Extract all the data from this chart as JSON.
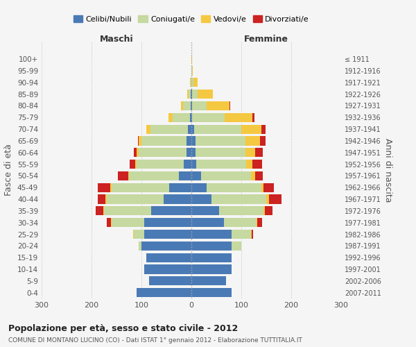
{
  "age_groups": [
    "0-4",
    "5-9",
    "10-14",
    "15-19",
    "20-24",
    "25-29",
    "30-34",
    "35-39",
    "40-44",
    "45-49",
    "50-54",
    "55-59",
    "60-64",
    "65-69",
    "70-74",
    "75-79",
    "80-84",
    "85-89",
    "90-94",
    "95-99",
    "100+"
  ],
  "birth_years": [
    "2007-2011",
    "2002-2006",
    "1997-2001",
    "1992-1996",
    "1987-1991",
    "1982-1986",
    "1977-1981",
    "1972-1976",
    "1967-1971",
    "1962-1966",
    "1957-1961",
    "1952-1956",
    "1947-1951",
    "1942-1946",
    "1937-1941",
    "1932-1936",
    "1927-1931",
    "1922-1926",
    "1917-1921",
    "1912-1916",
    "≤ 1911"
  ],
  "colors": {
    "celibi": "#4a7ab5",
    "coniugati": "#c5d9a0",
    "vedovi": "#f5c842",
    "divorziati": "#cc2222"
  },
  "maschi": {
    "celibi": [
      110,
      85,
      95,
      90,
      100,
      95,
      95,
      80,
      55,
      45,
      25,
      15,
      10,
      10,
      7,
      3,
      1,
      1,
      0,
      0,
      0
    ],
    "coniugati": [
      0,
      0,
      0,
      0,
      5,
      20,
      65,
      95,
      115,
      115,
      100,
      95,
      95,
      90,
      75,
      35,
      15,
      5,
      2,
      0,
      0
    ],
    "vedovi": [
      0,
      0,
      0,
      0,
      0,
      1,
      1,
      1,
      2,
      2,
      2,
      3,
      5,
      5,
      8,
      8,
      5,
      3,
      1,
      0,
      0
    ],
    "divorziati": [
      0,
      0,
      0,
      0,
      0,
      1,
      8,
      15,
      15,
      25,
      20,
      10,
      5,
      2,
      0,
      0,
      0,
      0,
      0,
      0,
      0
    ]
  },
  "femmine": {
    "celibi": [
      80,
      70,
      80,
      80,
      80,
      80,
      65,
      55,
      40,
      30,
      20,
      10,
      8,
      8,
      5,
      2,
      1,
      1,
      0,
      0,
      0
    ],
    "coniugati": [
      0,
      0,
      0,
      0,
      20,
      40,
      65,
      90,
      110,
      110,
      100,
      100,
      100,
      100,
      95,
      65,
      30,
      12,
      4,
      1,
      0
    ],
    "vedovi": [
      0,
      0,
      0,
      0,
      0,
      1,
      2,
      2,
      5,
      5,
      8,
      12,
      20,
      30,
      40,
      55,
      45,
      30,
      8,
      2,
      2
    ],
    "divorziati": [
      0,
      0,
      0,
      0,
      0,
      2,
      10,
      15,
      25,
      20,
      15,
      20,
      15,
      10,
      8,
      5,
      2,
      0,
      0,
      0,
      0
    ]
  },
  "xlim": 300,
  "title": "Popolazione per età, sesso e stato civile - 2012",
  "subtitle": "COMUNE DI MONTANO LUCINO (CO) - Dati ISTAT 1° gennaio 2012 - Elaborazione TUTTITALIA.IT",
  "ylabel_left": "Fasce di età",
  "ylabel_right": "Anni di nascita",
  "xlabel_left": "Maschi",
  "xlabel_right": "Femmine",
  "legend_labels": [
    "Celibi/Nubili",
    "Coniugati/e",
    "Vedovi/e",
    "Divorziati/e"
  ],
  "background_color": "#f5f5f5",
  "grid_color": "#cccccc"
}
